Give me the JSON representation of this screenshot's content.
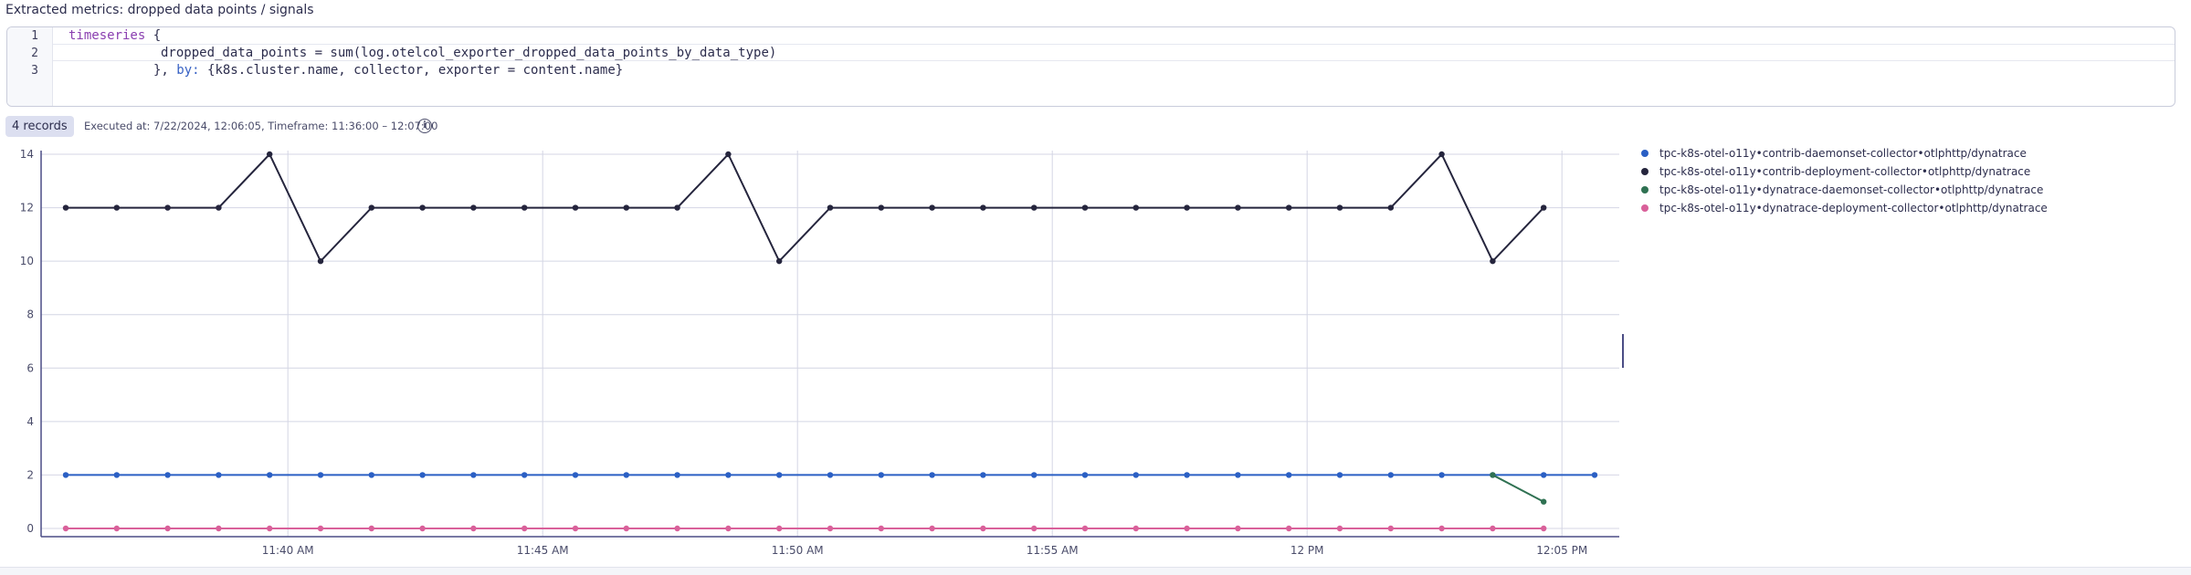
{
  "panel": {
    "title": "Extracted metrics: dropped data points / signals"
  },
  "editor": {
    "line_numbers": [
      "1",
      "2",
      "3"
    ],
    "line1": {
      "keyword": "timeseries",
      "rest": " {"
    },
    "line2": "dropped_data_points = sum(log.otelcol_exporter_dropped_data_points_by_data_type)",
    "line3": {
      "prefix": "}, ",
      "by": "by:",
      "rest": " {k8s.cluster.name, collector, exporter = content.name}"
    }
  },
  "results": {
    "records_badge": "4 records",
    "executed": "Executed at: 7/22/2024, 12:06:05, Timeframe: 11:36:00 – 12:07:00",
    "info_icon": "info-icon"
  },
  "colors": {
    "series_contrib_daemonset": "#2a5fc4",
    "series_contrib_deployment": "#25253d",
    "series_dynatrace_daemonset": "#2f7152",
    "series_dynatrace_deployment": "#d9609a",
    "grid": "#d4d6e4",
    "axis": "#4b4d85"
  },
  "chart_data": {
    "type": "line",
    "x": [
      "11:36",
      "11:37",
      "11:38",
      "11:39",
      "11:40",
      "11:41",
      "11:42",
      "11:43",
      "11:44",
      "11:45",
      "11:46",
      "11:47",
      "11:48",
      "11:49",
      "11:50",
      "11:51",
      "11:52",
      "11:53",
      "11:54",
      "11:55",
      "11:56",
      "11:57",
      "11:58",
      "11:59",
      "12:00",
      "12:01",
      "12:02",
      "12:03",
      "12:04",
      "12:05",
      "12:06"
    ],
    "x_ticks": [
      {
        "t": "11:40",
        "label": "11:40 AM"
      },
      {
        "t": "11:45",
        "label": "11:45 AM"
      },
      {
        "t": "11:50",
        "label": "11:50 AM"
      },
      {
        "t": "11:55",
        "label": "11:55 AM"
      },
      {
        "t": "12:00",
        "label": "12 PM"
      },
      {
        "t": "12:05",
        "label": "12:05 PM"
      }
    ],
    "y_ticks": [
      0,
      2,
      4,
      6,
      8,
      10,
      12,
      14
    ],
    "ylim": [
      0,
      14
    ],
    "grid": true,
    "legend_position": "right",
    "series": [
      {
        "name": "tpc-k8s-otel-o11y•contrib-daemonset-collector•otlphttp/dynatrace",
        "color_key": "series_contrib_daemonset",
        "values": [
          2,
          2,
          2,
          2,
          2,
          2,
          2,
          2,
          2,
          2,
          2,
          2,
          2,
          2,
          2,
          2,
          2,
          2,
          2,
          2,
          2,
          2,
          2,
          2,
          2,
          2,
          2,
          2,
          2,
          2,
          2
        ]
      },
      {
        "name": "tpc-k8s-otel-o11y•contrib-deployment-collector•otlphttp/dynatrace",
        "color_key": "series_contrib_deployment",
        "values": [
          12,
          12,
          12,
          12,
          14,
          10,
          12,
          12,
          12,
          12,
          12,
          12,
          12,
          14,
          10,
          12,
          12,
          12,
          12,
          12,
          12,
          12,
          12,
          12,
          12,
          12,
          12,
          14,
          10,
          12,
          null
        ]
      },
      {
        "name": "tpc-k8s-otel-o11y•dynatrace-daemonset-collector•otlphttp/dynatrace",
        "color_key": "series_dynatrace_daemonset",
        "values": [
          null,
          null,
          null,
          null,
          null,
          null,
          null,
          null,
          null,
          null,
          null,
          null,
          null,
          null,
          null,
          null,
          null,
          null,
          null,
          null,
          null,
          null,
          null,
          null,
          null,
          null,
          null,
          null,
          2,
          1,
          null
        ]
      },
      {
        "name": "tpc-k8s-otel-o11y•dynatrace-deployment-collector•otlphttp/dynatrace",
        "color_key": "series_dynatrace_deployment",
        "values": [
          0,
          0,
          0,
          0,
          0,
          0,
          0,
          0,
          0,
          0,
          0,
          0,
          0,
          0,
          0,
          0,
          0,
          0,
          0,
          0,
          0,
          0,
          0,
          0,
          0,
          0,
          0,
          0,
          0,
          0,
          null
        ]
      }
    ]
  }
}
